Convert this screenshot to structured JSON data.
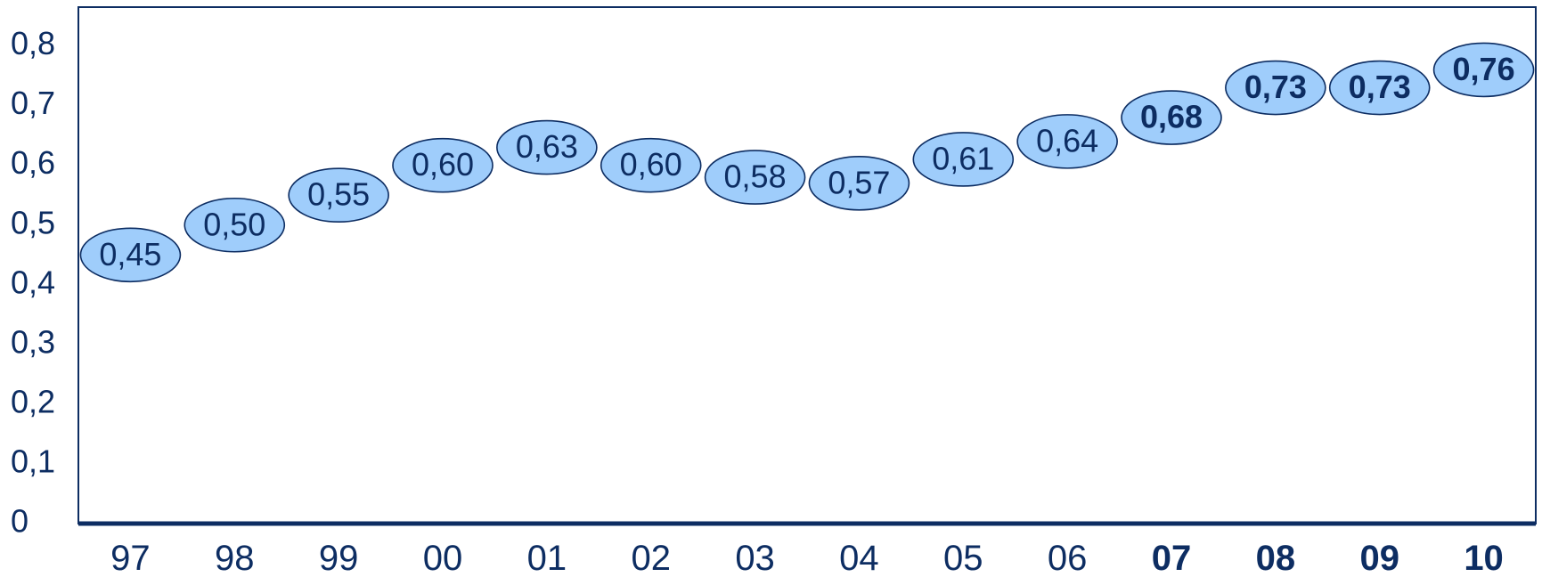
{
  "chart_data": {
    "type": "scatter",
    "categories": [
      "97",
      "98",
      "99",
      "00",
      "01",
      "02",
      "03",
      "04",
      "05",
      "06",
      "07",
      "08",
      "09",
      "10"
    ],
    "bold_categories": [
      "07",
      "08",
      "09",
      "10"
    ],
    "series": [
      {
        "values": [
          0.45,
          0.5,
          0.55,
          0.6,
          0.63,
          0.6,
          0.58,
          0.57,
          0.61,
          0.64,
          0.68,
          0.73,
          0.73,
          0.76
        ],
        "labels": [
          "0,45",
          "0,50",
          "0,55",
          "0,60",
          "0,63",
          "0,60",
          "0,58",
          "0,57",
          "0,61",
          "0,64",
          "0,68",
          "0,73",
          "0,73",
          "0,76"
        ]
      }
    ],
    "yticks": [
      "0",
      "0,1",
      "0,2",
      "0,3",
      "0,4",
      "0,5",
      "0,6",
      "0,7",
      "0,8"
    ],
    "ylim": [
      0,
      0.865
    ],
    "title": "",
    "xlabel": "",
    "ylabel": "",
    "grid": false,
    "legend": "none",
    "colors": {
      "marker_fill": "#9fcdfb",
      "marker_stroke": "#0d2d62",
      "axis": "#0d2d62",
      "text": "#0d2d62"
    }
  }
}
